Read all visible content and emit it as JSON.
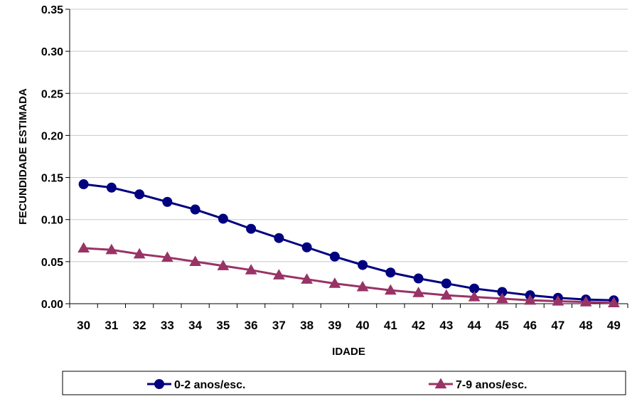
{
  "chart_data": {
    "type": "line",
    "title": "",
    "xlabel": "IDADE",
    "ylabel": "FECUNDIDADE ESTIMADA",
    "categories": [
      "30",
      "31",
      "32",
      "33",
      "34",
      "35",
      "36",
      "37",
      "38",
      "39",
      "40",
      "41",
      "42",
      "43",
      "44",
      "45",
      "46",
      "47",
      "48",
      "49"
    ],
    "yticks": [
      "0.00",
      "0.05",
      "0.10",
      "0.15",
      "0.20",
      "0.25",
      "0.30",
      "0.35"
    ],
    "ylim": [
      0,
      0.35
    ],
    "grid": true,
    "legend_position": "bottom",
    "series": [
      {
        "name": "0-2 anos/esc.",
        "marker": "circle",
        "color": "#000080",
        "values": [
          0.142,
          0.138,
          0.13,
          0.121,
          0.112,
          0.101,
          0.089,
          0.078,
          0.067,
          0.056,
          0.046,
          0.037,
          0.03,
          0.024,
          0.018,
          0.014,
          0.01,
          0.007,
          0.005,
          0.004
        ]
      },
      {
        "name": "7-9 anos/esc.",
        "marker": "triangle",
        "color": "#993366",
        "values": [
          0.066,
          0.064,
          0.059,
          0.055,
          0.05,
          0.045,
          0.04,
          0.034,
          0.029,
          0.024,
          0.02,
          0.016,
          0.013,
          0.01,
          0.008,
          0.006,
          0.004,
          0.003,
          0.002,
          0.001
        ]
      }
    ]
  }
}
